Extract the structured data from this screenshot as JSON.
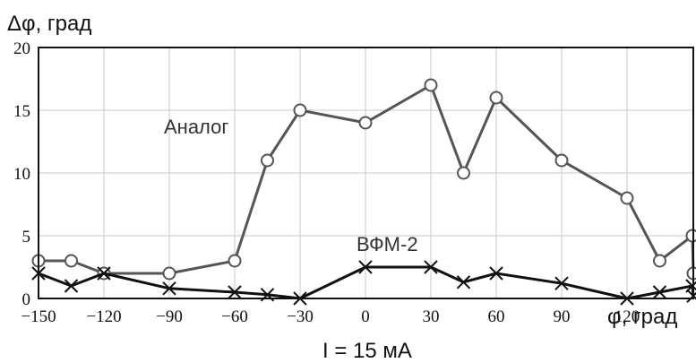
{
  "chart_data": {
    "type": "line",
    "ylabel": "Δφ, град",
    "xlabel": "φ, град",
    "caption": "I = 15 мА",
    "xlim": [
      -150,
      150
    ],
    "ylim": [
      0,
      20
    ],
    "xticks": [
      -150,
      -120,
      -90,
      -60,
      -30,
      0,
      30,
      60,
      90,
      120
    ],
    "xtick_labels": [
      "−150",
      "−120",
      "−90",
      "−60",
      "−30",
      "0",
      "30",
      "60",
      "90",
      "120"
    ],
    "yticks": [
      0,
      5,
      10,
      15,
      20
    ],
    "ytick_labels": [
      "0",
      "5",
      "10",
      "15",
      "20"
    ],
    "grid": true,
    "series": [
      {
        "name": "Аналог",
        "marker": "circle",
        "color": "#555555",
        "points": [
          [
            -150,
            3
          ],
          [
            -135,
            3
          ],
          [
            -120,
            2
          ],
          [
            -90,
            2
          ],
          [
            -60,
            3
          ],
          [
            -45,
            11
          ],
          [
            -30,
            15
          ],
          [
            0,
            14
          ],
          [
            30,
            17
          ],
          [
            45,
            10
          ],
          [
            60,
            16
          ],
          [
            90,
            11
          ],
          [
            120,
            8
          ],
          [
            135,
            3
          ],
          [
            150,
            5
          ],
          [
            180,
            2
          ]
        ]
      },
      {
        "name": "ВФМ-2",
        "marker": "x",
        "color": "#111111",
        "points": [
          [
            -150,
            2
          ],
          [
            -135,
            1
          ],
          [
            -120,
            2
          ],
          [
            -90,
            0.8
          ],
          [
            -60,
            0.5
          ],
          [
            -45,
            0.3
          ],
          [
            -30,
            0
          ],
          [
            0,
            2.5
          ],
          [
            30,
            2.5
          ],
          [
            45,
            1.3
          ],
          [
            60,
            2
          ],
          [
            90,
            1.2
          ],
          [
            120,
            0
          ],
          [
            135,
            0.5
          ],
          [
            150,
            1
          ],
          [
            180,
            0.2
          ]
        ]
      }
    ]
  }
}
